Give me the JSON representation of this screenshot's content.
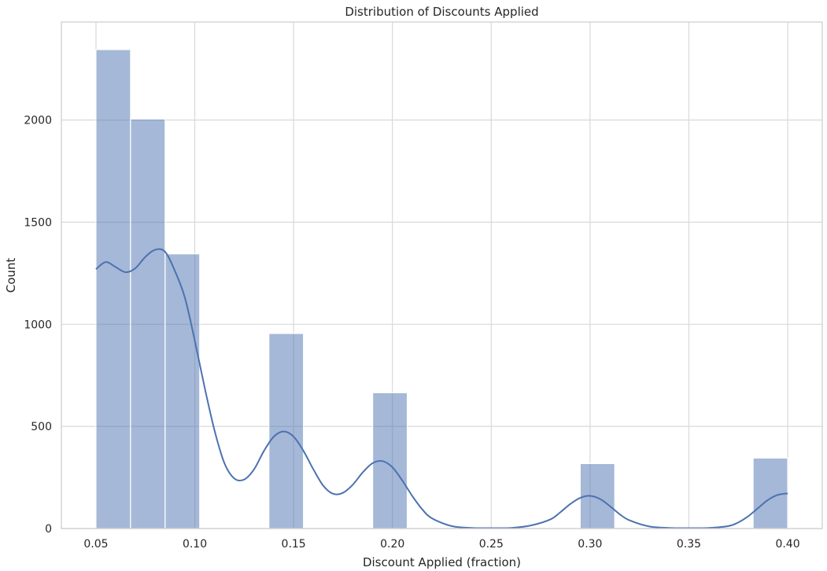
{
  "chart_data": {
    "type": "bar",
    "title": "Distribution of Discounts Applied",
    "xlabel": "Discount Applied (fraction)",
    "ylabel": "Count",
    "xlim": [
      0.0325,
      0.4175
    ],
    "ylim": [
      0,
      2480
    ],
    "xticks": [
      "0.05",
      "0.10",
      "0.15",
      "0.20",
      "0.25",
      "0.30",
      "0.35",
      "0.40"
    ],
    "yticks": [
      "0",
      "500",
      "1000",
      "1500",
      "2000"
    ],
    "grid": true,
    "bins": [
      {
        "x0": 0.05,
        "x1": 0.0675,
        "count": 2345
      },
      {
        "x0": 0.0675,
        "x1": 0.085,
        "count": 2005
      },
      {
        "x0": 0.085,
        "x1": 0.1025,
        "count": 1345
      },
      {
        "x0": 0.1375,
        "x1": 0.155,
        "count": 955
      },
      {
        "x0": 0.19,
        "x1": 0.2075,
        "count": 665
      },
      {
        "x0": 0.295,
        "x1": 0.3125,
        "count": 318
      },
      {
        "x0": 0.3825,
        "x1": 0.4,
        "count": 345
      }
    ],
    "kde": {
      "x": [
        0.05,
        0.055,
        0.06,
        0.065,
        0.07,
        0.075,
        0.08,
        0.085,
        0.09,
        0.095,
        0.1,
        0.105,
        0.11,
        0.115,
        0.12,
        0.125,
        0.13,
        0.135,
        0.14,
        0.145,
        0.15,
        0.155,
        0.16,
        0.165,
        0.17,
        0.175,
        0.18,
        0.185,
        0.19,
        0.195,
        0.2,
        0.205,
        0.21,
        0.215,
        0.22,
        0.23,
        0.24,
        0.25,
        0.26,
        0.27,
        0.28,
        0.285,
        0.29,
        0.295,
        0.3,
        0.305,
        0.31,
        0.315,
        0.32,
        0.33,
        0.34,
        0.35,
        0.36,
        0.37,
        0.375,
        0.38,
        0.385,
        0.39,
        0.395,
        0.4
      ],
      "y": [
        1270,
        1305,
        1280,
        1255,
        1275,
        1330,
        1365,
        1355,
        1260,
        1130,
        920,
        690,
        480,
        320,
        245,
        240,
        290,
        380,
        450,
        475,
        450,
        380,
        290,
        210,
        170,
        175,
        215,
        275,
        320,
        330,
        300,
        235,
        160,
        95,
        50,
        12,
        3,
        2,
        3,
        15,
        45,
        80,
        120,
        150,
        160,
        145,
        110,
        70,
        40,
        10,
        3,
        2,
        3,
        12,
        30,
        60,
        100,
        140,
        165,
        172
      ]
    },
    "bar_color": "#4c72b0",
    "bar_opacity": 0.5,
    "line_color": "#4c72b0"
  }
}
